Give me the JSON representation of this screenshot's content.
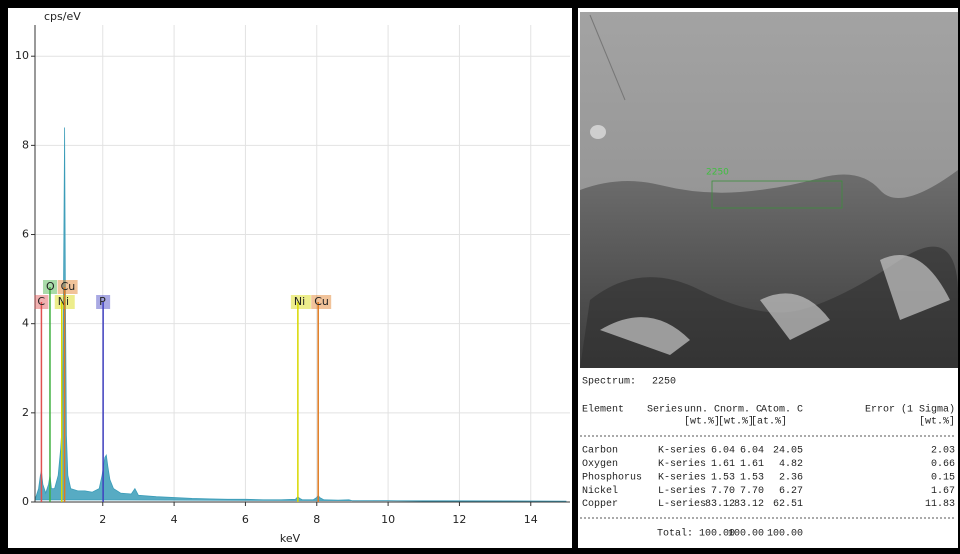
{
  "chart_data": {
    "type": "area",
    "y_label": "cps/eV",
    "x_label": "keV",
    "x": [
      0.1,
      0.2,
      0.25,
      0.28,
      0.32,
      0.4,
      0.48,
      0.52,
      0.56,
      0.65,
      0.75,
      0.82,
      0.85,
      0.88,
      0.91,
      0.93,
      0.95,
      0.98,
      1.02,
      1.1,
      1.3,
      1.5,
      1.7,
      1.9,
      1.98,
      2.02,
      2.06,
      2.1,
      2.14,
      2.2,
      2.3,
      2.5,
      2.8,
      2.9,
      3.0,
      3.5,
      4,
      4.5,
      5,
      5.5,
      6,
      6.5,
      7,
      7.4,
      7.47,
      7.52,
      7.6,
      7.9,
      8.0,
      8.04,
      8.08,
      8.2,
      8.6,
      8.9,
      9,
      10,
      11,
      12,
      13,
      14,
      15
    ],
    "values": [
      0.05,
      0.3,
      0.6,
      0.7,
      0.4,
      0.2,
      0.4,
      0.6,
      0.3,
      0.3,
      0.6,
      1.2,
      1.6,
      2.5,
      6.0,
      8.4,
      5.0,
      1.5,
      0.6,
      0.3,
      0.25,
      0.25,
      0.22,
      0.3,
      0.6,
      0.8,
      1.0,
      1.05,
      0.8,
      0.5,
      0.3,
      0.2,
      0.18,
      0.3,
      0.15,
      0.12,
      0.1,
      0.08,
      0.07,
      0.06,
      0.06,
      0.05,
      0.05,
      0.06,
      0.12,
      0.08,
      0.05,
      0.05,
      0.1,
      0.15,
      0.1,
      0.05,
      0.04,
      0.05,
      0.03,
      0.03,
      0.02,
      0.02,
      0.02,
      0.02,
      0.02
    ],
    "color": "#3a9cb8",
    "xlim": [
      0.1,
      15.1
    ],
    "xticks": [
      2,
      4,
      6,
      8,
      10,
      12,
      14
    ],
    "ylim": [
      0,
      10.7
    ],
    "yticks": [
      0,
      2,
      4,
      6,
      8,
      10
    ],
    "grid": true,
    "elements": [
      {
        "label": "C",
        "energy": 0.28,
        "color": "#e05050"
      },
      {
        "label": "O",
        "energy": 0.52,
        "color": "#40b040"
      },
      {
        "label": "Ni",
        "energy": 0.85,
        "color": "#d8d800"
      },
      {
        "label": "Cu",
        "energy": 0.93,
        "color": "#e07a20"
      },
      {
        "label": "P",
        "energy": 2.01,
        "color": "#4040c0"
      },
      {
        "label": "Ni",
        "energy": 7.47,
        "color": "#d8d800"
      },
      {
        "label": "Cu",
        "energy": 8.04,
        "color": "#e07a20"
      }
    ]
  },
  "image": {
    "label": "2250"
  },
  "table": {
    "spectrum_label": "Spectrum:",
    "spectrum": "2250",
    "header": [
      "Element",
      "Series",
      "unn. C",
      "norm. C",
      "Atom. C",
      "Error (1 Sigma)"
    ],
    "units": [
      "[wt.%]",
      "[wt.%]",
      "[at.%]",
      "[wt.%]"
    ],
    "rows": [
      [
        "Carbon",
        "K-series",
        "6.04",
        "6.04",
        "24.05",
        "2.03"
      ],
      [
        "Oxygen",
        "K-series",
        "1.61",
        "1.61",
        "4.82",
        "0.66"
      ],
      [
        "Phosphorus",
        "K-series",
        "1.53",
        "1.53",
        "2.36",
        "0.15"
      ],
      [
        "Nickel",
        "L-series",
        "7.70",
        "7.70",
        "6.27",
        "1.67"
      ],
      [
        "Copper",
        "L-series",
        "83.12",
        "83.12",
        "62.51",
        "11.83"
      ]
    ],
    "total_label": "Total:",
    "total": [
      "100.00",
      "100.00",
      "100.00"
    ]
  }
}
